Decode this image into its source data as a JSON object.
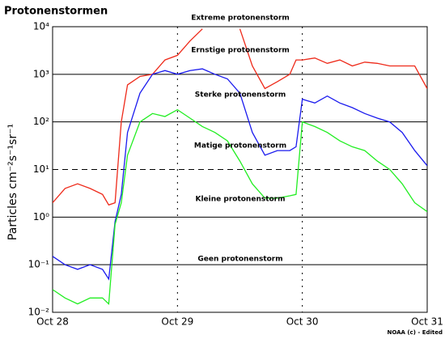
{
  "chart_data": {
    "type": "line",
    "title": "Protonenstormen",
    "y_label": "Particles cm⁻²s⁻¹sr⁻¹",
    "source": "NOAA (c) - Edited",
    "log_y": true,
    "grid": true,
    "threshold": 10,
    "xlim": [
      0,
      3
    ],
    "xticks": [
      {
        "value": 0,
        "label": "Oct 28"
      },
      {
        "value": 1,
        "label": "Oct 29"
      },
      {
        "value": 2,
        "label": "Oct 30"
      },
      {
        "value": 3,
        "label": "Oct 31"
      }
    ],
    "ylim": [
      0.01,
      10000
    ],
    "yticks": [
      {
        "value": 0.01,
        "label": "10⁻²"
      },
      {
        "value": 0.1,
        "label": "10⁻¹"
      },
      {
        "value": 1,
        "label": "10⁰"
      },
      {
        "value": 10,
        "label": "10¹"
      },
      {
        "value": 100,
        "label": "10²"
      },
      {
        "value": 1000,
        "label": "10³"
      },
      {
        "value": 10000,
        "label": "10⁴"
      }
    ],
    "annotations": [
      "Extreme protonenstorm",
      "Ernstige protonenstorm",
      "Sterke protonenstorm",
      "Matige protonenstorm",
      "Kleine protonenstorm",
      "Geen protonenstorm"
    ],
    "x": [
      0,
      0.1,
      0.2,
      0.3,
      0.4,
      0.45,
      0.5,
      0.55,
      0.6,
      0.7,
      0.8,
      0.9,
      1.0,
      1.1,
      1.2,
      1.3,
      1.4,
      1.5,
      1.6,
      1.7,
      1.8,
      1.9,
      1.95,
      2.0,
      2.1,
      2.2,
      2.3,
      2.4,
      2.5,
      2.6,
      2.7,
      2.8,
      2.9,
      3.0
    ],
    "series": [
      {
        "color": "#ee2a1a",
        "values": [
          2,
          4,
          5,
          4,
          3,
          1.8,
          2,
          100,
          600,
          900,
          1000,
          2000,
          2500,
          5000,
          9000,
          null,
          null,
          9000,
          1500,
          500,
          700,
          1000,
          2000,
          2000,
          2200,
          1700,
          2000,
          1500,
          1800,
          1700,
          1500,
          1500,
          1500,
          500
        ]
      },
      {
        "color": "#1a1aee",
        "values": [
          0.15,
          0.1,
          0.08,
          0.1,
          0.08,
          0.05,
          0.8,
          3,
          60,
          400,
          1000,
          1200,
          1000,
          1200,
          1300,
          1000,
          800,
          400,
          60,
          20,
          25,
          25,
          30,
          300,
          250,
          350,
          250,
          200,
          150,
          120,
          100,
          60,
          25,
          12
        ]
      },
      {
        "color": "#22ee22",
        "values": [
          0.03,
          0.02,
          0.015,
          0.02,
          0.02,
          0.015,
          0.7,
          2,
          20,
          100,
          150,
          130,
          180,
          120,
          80,
          60,
          40,
          15,
          5,
          2.5,
          2.5,
          2.8,
          3,
          100,
          80,
          60,
          40,
          30,
          25,
          15,
          10,
          5,
          2,
          1.3
        ]
      }
    ]
  }
}
